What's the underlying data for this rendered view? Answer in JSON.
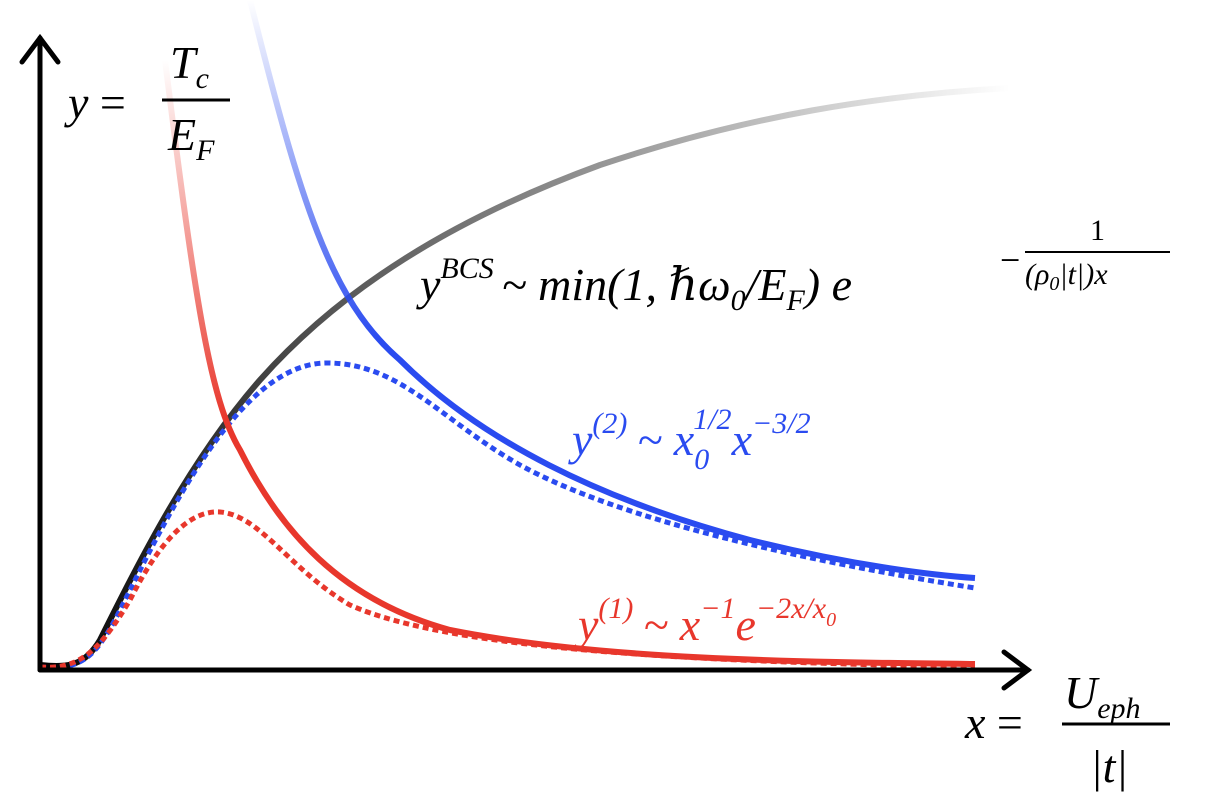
{
  "y_axis_label": {
    "var": "y",
    "eq": "=",
    "num": "T",
    "num_sub": "c",
    "den": "E",
    "den_sub": "F"
  },
  "x_axis_label": {
    "var": "x",
    "eq": "=",
    "num": "U",
    "num_sub": "eph",
    "den": "|t|"
  },
  "bcs_label": {
    "y": "y",
    "sup": "BCS",
    "body": "~ min(1, ℏω",
    "sub": "0",
    "body2": "/E",
    "sub2": "F",
    "body3": ") e",
    "exp_sign": "−",
    "exp_num": "1",
    "exp_den": "(ρ",
    "exp_den_sub": "0",
    "exp_den_rest": "|t|)x"
  },
  "y2_label": {
    "y": "y",
    "sup": "(2)",
    "body": "~ x",
    "sub": "0",
    "sup2": "1/2",
    "x": "x",
    "sup3": "−3/2"
  },
  "y1_label": {
    "y": "y",
    "sup": "(1)",
    "body": "~ x",
    "sup2": "−1",
    "e": "e",
    "sup3": "−2x/x",
    "sup3_sub": "0"
  }
}
